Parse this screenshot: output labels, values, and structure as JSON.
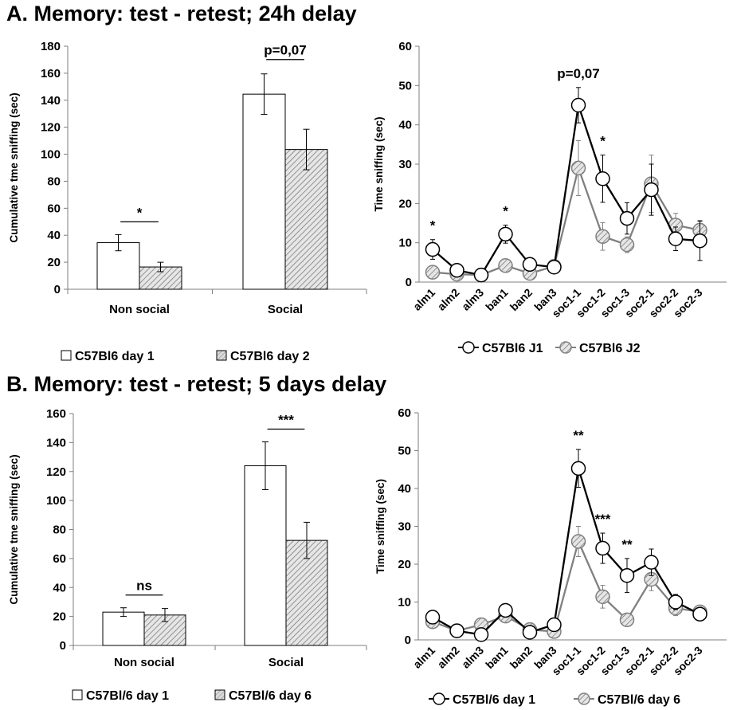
{
  "panels": [
    {
      "letter": "A.",
      "title": "Memory: test - retest; 24h delay"
    },
    {
      "letter": "B.",
      "title": "Memory: test - retest; 5 days delay"
    }
  ],
  "colors": {
    "axis": "#7f7f7f",
    "dark": "#000000",
    "gray": "#808080",
    "hatch_fill": "#d9d9d9",
    "white": "#ffffff"
  },
  "chart_data": [
    {
      "id": "A-bar",
      "type": "bar",
      "categories": [
        "Non social",
        "Social"
      ],
      "ylabel": "Cumulative tme sniffing (sec)",
      "ylim": [
        0,
        180
      ],
      "yticks": [
        0,
        20,
        40,
        60,
        80,
        100,
        120,
        140,
        160,
        180
      ],
      "series": [
        {
          "name": "C57Bl6 day 1",
          "style": "open",
          "values": [
            34.5,
            144.5
          ],
          "errors": [
            6,
            15
          ]
        },
        {
          "name": "C57Bl6 day 2",
          "style": "hatched",
          "values": [
            16.5,
            103.5
          ],
          "errors": [
            3.5,
            15
          ]
        }
      ],
      "significance": [
        {
          "category": "Non social",
          "label": "*"
        },
        {
          "category": "Social",
          "label": "p=0,07"
        }
      ]
    },
    {
      "id": "A-line",
      "type": "line",
      "categories": [
        "alm1",
        "alm2",
        "alm3",
        "ban1",
        "ban2",
        "ban3",
        "soc1-1",
        "soc1-2",
        "soc1-3",
        "soc2-1",
        "soc2-2",
        "soc2-3"
      ],
      "ylabel": "Time sniffing (sec)",
      "ylim": [
        0,
        60
      ],
      "yticks": [
        0,
        10,
        20,
        30,
        40,
        50,
        60
      ],
      "series": [
        {
          "name": "C57Bl6 J1",
          "style": "open",
          "values": [
            8.3,
            3.0,
            1.8,
            12.2,
            4.5,
            3.8,
            45.0,
            26.3,
            16.2,
            23.5,
            11.0,
            10.5
          ],
          "errors": [
            2.5,
            0.8,
            0.6,
            2.3,
            1.2,
            0.8,
            4.5,
            6.0,
            4.0,
            6.5,
            3.0,
            5.0
          ]
        },
        {
          "name": "C57Bl6 J2",
          "style": "hatched",
          "values": [
            2.5,
            2.0,
            1.8,
            4.2,
            2.2,
            4.0,
            29.0,
            11.6,
            9.5,
            25.0,
            14.5,
            13.2
          ],
          "errors": [
            1.0,
            0.8,
            0.6,
            1.2,
            0.8,
            0.8,
            7.0,
            3.5,
            2.0,
            7.3,
            3.0,
            2.5
          ]
        }
      ],
      "significance": [
        {
          "category": "alm1",
          "label": "*"
        },
        {
          "category": "ban1",
          "label": "*"
        },
        {
          "category": "soc1-1",
          "label": "p=0,07"
        },
        {
          "category": "soc1-2",
          "label": "*"
        }
      ]
    },
    {
      "id": "B-bar",
      "type": "bar",
      "categories": [
        "Non social",
        "Social"
      ],
      "ylabel": "Cumulative tme sniffing (sec)",
      "ylim": [
        0,
        160
      ],
      "yticks": [
        0,
        20,
        40,
        60,
        80,
        100,
        120,
        140,
        160
      ],
      "series": [
        {
          "name": "C57Bl/6 day 1",
          "style": "open",
          "values": [
            23,
            124
          ],
          "errors": [
            3,
            16.5
          ]
        },
        {
          "name": "C57Bl/6 day 6",
          "style": "hatched",
          "values": [
            21,
            72.5
          ],
          "errors": [
            4.5,
            12.5
          ]
        }
      ],
      "significance": [
        {
          "category": "Non social",
          "label": "ns"
        },
        {
          "category": "Social",
          "label": "***"
        }
      ]
    },
    {
      "id": "B-line",
      "type": "line",
      "categories": [
        "alm1",
        "alm2",
        "alm3",
        "ban1",
        "ban2",
        "ban3",
        "soc1-1",
        "soc1-2",
        "soc1-3",
        "soc2-1",
        "soc2-2",
        "soc2-3"
      ],
      "ylabel": "Time sniffing (sec)",
      "ylim": [
        0,
        60
      ],
      "yticks": [
        0,
        10,
        20,
        30,
        40,
        50,
        60
      ],
      "series": [
        {
          "name": "C57Bl/6 day 1",
          "style": "open",
          "values": [
            6.0,
            2.4,
            1.4,
            7.8,
            2.0,
            4.0,
            45.3,
            24.2,
            17.0,
            20.5,
            10.0,
            6.8
          ],
          "errors": [
            1.0,
            0.6,
            0.6,
            1.2,
            0.6,
            1.0,
            5.0,
            4.0,
            4.5,
            3.5,
            2.0,
            1.5
          ]
        },
        {
          "name": "C57Bl/6 day 6",
          "style": "hatched",
          "values": [
            4.8,
            2.4,
            4.0,
            6.3,
            2.7,
            2.2,
            26.0,
            11.4,
            5.3,
            16.0,
            8.4,
            7.4
          ],
          "errors": [
            1.0,
            0.6,
            0.8,
            1.2,
            0.6,
            0.6,
            4.0,
            3.0,
            1.0,
            3.0,
            2.0,
            1.5
          ]
        }
      ],
      "significance": [
        {
          "category": "soc1-1",
          "label": "**"
        },
        {
          "category": "soc1-2",
          "label": "***"
        },
        {
          "category": "soc1-3",
          "label": "**"
        }
      ]
    }
  ]
}
